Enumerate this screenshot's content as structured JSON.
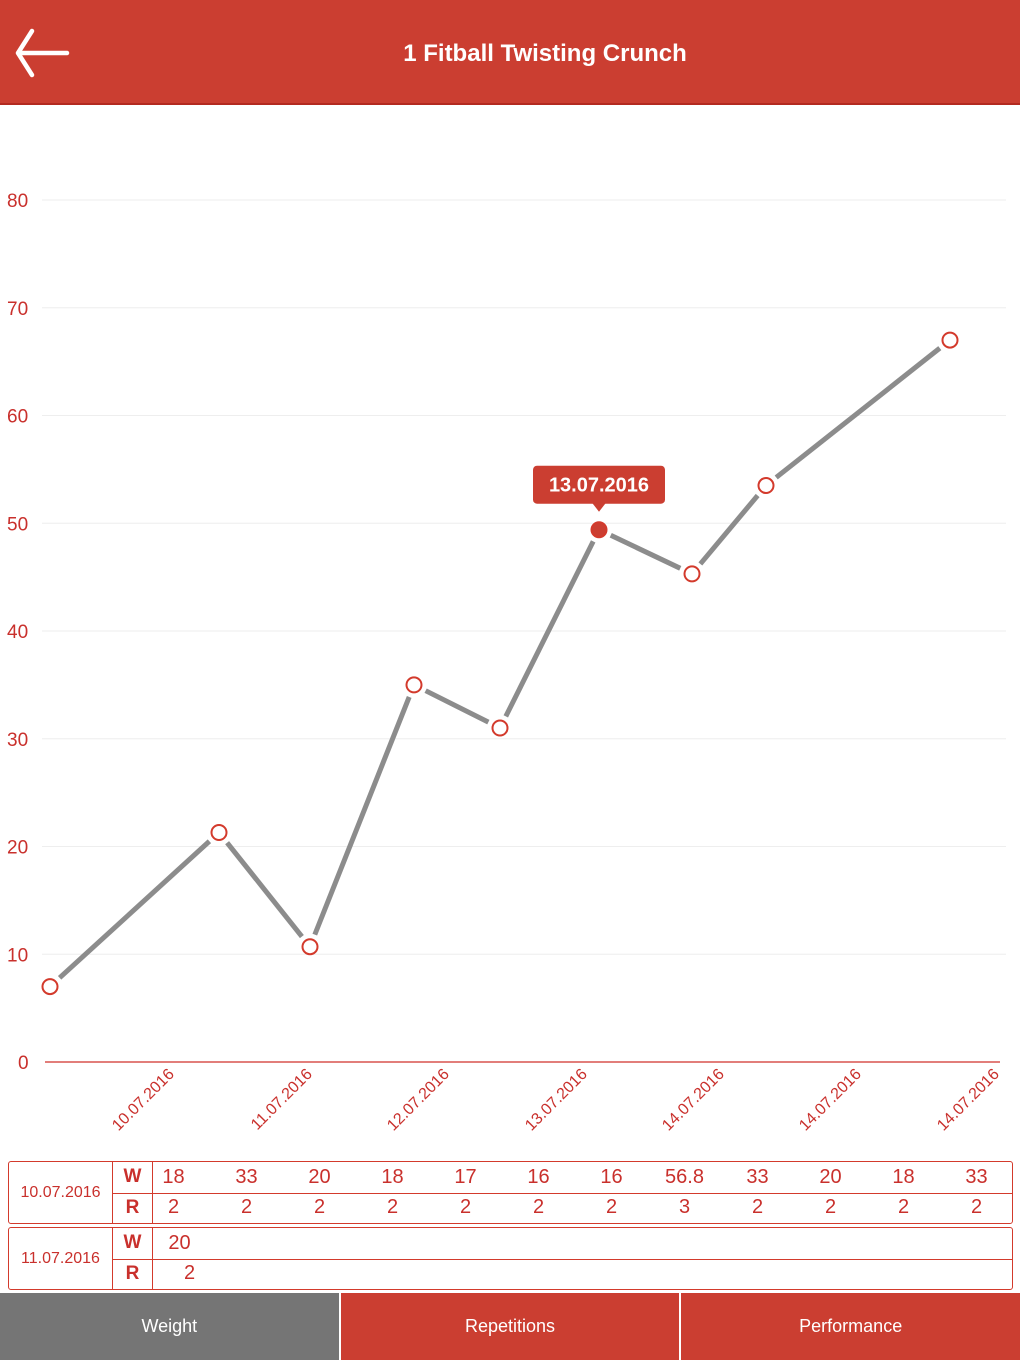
{
  "header": {
    "title": "1 Fitball Twisting Crunch",
    "back_icon": "arrow-left-icon"
  },
  "colors": {
    "primary": "#cb3e31",
    "line": "#8c8c8c",
    "active_tab": "#757575"
  },
  "chart_data": {
    "type": "line",
    "ylim": [
      0,
      80
    ],
    "y_ticks": [
      0,
      10,
      20,
      30,
      40,
      50,
      60,
      70,
      80
    ],
    "x_tick_labels": [
      "10.07.2016",
      "11.07.2016",
      "12.07.2016",
      "13.07.2016",
      "14.07.2016",
      "14.07.2016",
      "14.07.2016"
    ],
    "values": [
      7,
      21.3,
      10.7,
      35,
      31,
      49.4,
      45.3,
      53.5,
      67
    ],
    "grid": true,
    "selected_index": 5,
    "tooltip": "13.07.2016"
  },
  "table": [
    {
      "date": "10.07.2016",
      "w_label": "W",
      "r_label": "R",
      "weights": [
        "18",
        "33",
        "20",
        "18",
        "17",
        "16",
        "16",
        "56.8",
        "33",
        "20",
        "18",
        "33"
      ],
      "reps": [
        "2",
        "2",
        "2",
        "2",
        "2",
        "2",
        "2",
        "3",
        "2",
        "2",
        "2",
        "2"
      ]
    },
    {
      "date": "11.07.2016",
      "w_label": "W",
      "r_label": "R",
      "weights": [
        "20"
      ],
      "reps": [
        "2"
      ]
    }
  ],
  "tabs": [
    {
      "label": "Weight",
      "active": true
    },
    {
      "label": "Repetitions",
      "active": false
    },
    {
      "label": "Performance",
      "active": false
    }
  ]
}
